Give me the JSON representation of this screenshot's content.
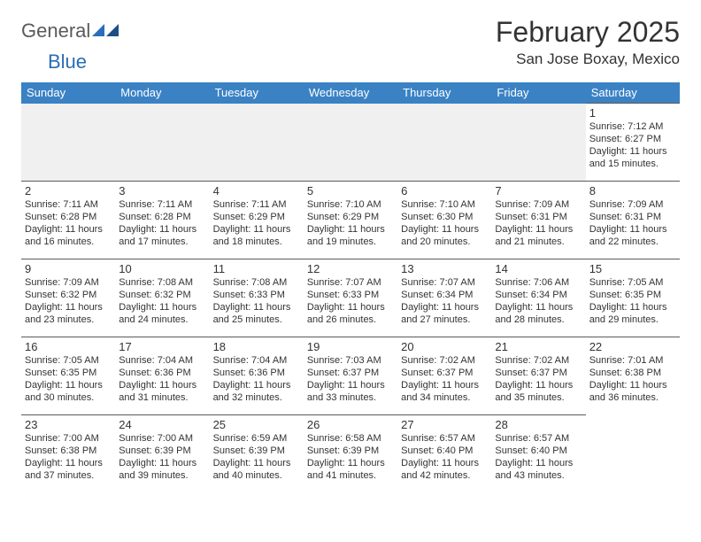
{
  "logo": {
    "part1": "General",
    "part2": "Blue"
  },
  "title": "February 2025",
  "location": "San Jose Boxay, Mexico",
  "colors": {
    "header_bg": "#3b82c4",
    "header_fg": "#ffffff",
    "spacer_bg": "#f0f0f0",
    "rule": "#5b5b5b",
    "logo_accent": "#2a6db8",
    "logo_gray": "#5a5a5a"
  },
  "weekday_labels": [
    "Sunday",
    "Monday",
    "Tuesday",
    "Wednesday",
    "Thursday",
    "Friday",
    "Saturday"
  ],
  "first_weekday_index": 6,
  "days": [
    {
      "n": 1,
      "sunrise": "7:12 AM",
      "sunset": "6:27 PM",
      "daylight": "11 hours and 15 minutes."
    },
    {
      "n": 2,
      "sunrise": "7:11 AM",
      "sunset": "6:28 PM",
      "daylight": "11 hours and 16 minutes."
    },
    {
      "n": 3,
      "sunrise": "7:11 AM",
      "sunset": "6:28 PM",
      "daylight": "11 hours and 17 minutes."
    },
    {
      "n": 4,
      "sunrise": "7:11 AM",
      "sunset": "6:29 PM",
      "daylight": "11 hours and 18 minutes."
    },
    {
      "n": 5,
      "sunrise": "7:10 AM",
      "sunset": "6:29 PM",
      "daylight": "11 hours and 19 minutes."
    },
    {
      "n": 6,
      "sunrise": "7:10 AM",
      "sunset": "6:30 PM",
      "daylight": "11 hours and 20 minutes."
    },
    {
      "n": 7,
      "sunrise": "7:09 AM",
      "sunset": "6:31 PM",
      "daylight": "11 hours and 21 minutes."
    },
    {
      "n": 8,
      "sunrise": "7:09 AM",
      "sunset": "6:31 PM",
      "daylight": "11 hours and 22 minutes."
    },
    {
      "n": 9,
      "sunrise": "7:09 AM",
      "sunset": "6:32 PM",
      "daylight": "11 hours and 23 minutes."
    },
    {
      "n": 10,
      "sunrise": "7:08 AM",
      "sunset": "6:32 PM",
      "daylight": "11 hours and 24 minutes."
    },
    {
      "n": 11,
      "sunrise": "7:08 AM",
      "sunset": "6:33 PM",
      "daylight": "11 hours and 25 minutes."
    },
    {
      "n": 12,
      "sunrise": "7:07 AM",
      "sunset": "6:33 PM",
      "daylight": "11 hours and 26 minutes."
    },
    {
      "n": 13,
      "sunrise": "7:07 AM",
      "sunset": "6:34 PM",
      "daylight": "11 hours and 27 minutes."
    },
    {
      "n": 14,
      "sunrise": "7:06 AM",
      "sunset": "6:34 PM",
      "daylight": "11 hours and 28 minutes."
    },
    {
      "n": 15,
      "sunrise": "7:05 AM",
      "sunset": "6:35 PM",
      "daylight": "11 hours and 29 minutes."
    },
    {
      "n": 16,
      "sunrise": "7:05 AM",
      "sunset": "6:35 PM",
      "daylight": "11 hours and 30 minutes."
    },
    {
      "n": 17,
      "sunrise": "7:04 AM",
      "sunset": "6:36 PM",
      "daylight": "11 hours and 31 minutes."
    },
    {
      "n": 18,
      "sunrise": "7:04 AM",
      "sunset": "6:36 PM",
      "daylight": "11 hours and 32 minutes."
    },
    {
      "n": 19,
      "sunrise": "7:03 AM",
      "sunset": "6:37 PM",
      "daylight": "11 hours and 33 minutes."
    },
    {
      "n": 20,
      "sunrise": "7:02 AM",
      "sunset": "6:37 PM",
      "daylight": "11 hours and 34 minutes."
    },
    {
      "n": 21,
      "sunrise": "7:02 AM",
      "sunset": "6:37 PM",
      "daylight": "11 hours and 35 minutes."
    },
    {
      "n": 22,
      "sunrise": "7:01 AM",
      "sunset": "6:38 PM",
      "daylight": "11 hours and 36 minutes."
    },
    {
      "n": 23,
      "sunrise": "7:00 AM",
      "sunset": "6:38 PM",
      "daylight": "11 hours and 37 minutes."
    },
    {
      "n": 24,
      "sunrise": "7:00 AM",
      "sunset": "6:39 PM",
      "daylight": "11 hours and 39 minutes."
    },
    {
      "n": 25,
      "sunrise": "6:59 AM",
      "sunset": "6:39 PM",
      "daylight": "11 hours and 40 minutes."
    },
    {
      "n": 26,
      "sunrise": "6:58 AM",
      "sunset": "6:39 PM",
      "daylight": "11 hours and 41 minutes."
    },
    {
      "n": 27,
      "sunrise": "6:57 AM",
      "sunset": "6:40 PM",
      "daylight": "11 hours and 42 minutes."
    },
    {
      "n": 28,
      "sunrise": "6:57 AM",
      "sunset": "6:40 PM",
      "daylight": "11 hours and 43 minutes."
    }
  ],
  "labels": {
    "sunrise_prefix": "Sunrise: ",
    "sunset_prefix": "Sunset: ",
    "daylight_prefix": "Daylight: "
  }
}
